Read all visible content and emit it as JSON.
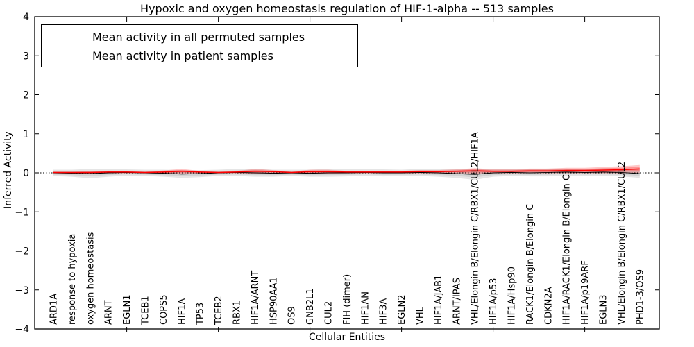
{
  "figure": {
    "title": "Hypoxic and oxygen homeostasis regulation of HIF-1-alpha -- 513 samples",
    "xlabel": "Cellular Entities",
    "ylabel": "Inferred Activity"
  },
  "legend": {
    "items": [
      {
        "label": "Mean activity in all permuted samples",
        "color": "#000000"
      },
      {
        "label": "Mean activity in patient samples",
        "color": "#ff0000"
      }
    ]
  },
  "chart_data": {
    "type": "line",
    "title": "Hypoxic and oxygen homeostasis regulation of HIF-1-alpha -- 513 samples",
    "xlabel": "Cellular Entities",
    "ylabel": "Inferred Activity",
    "ylim": [
      -4,
      4
    ],
    "yticks": [
      -4,
      -3,
      -2,
      -1,
      0,
      1,
      2,
      3,
      4
    ],
    "grid": false,
    "legend_position": "upper left",
    "zero_reference_line": "dotted",
    "x_major_tick_indices": [
      4,
      9,
      14,
      19,
      24,
      29
    ],
    "categories": [
      "ARD1A",
      "response to hypoxia",
      "oxygen homeostasis",
      "ARNT",
      "EGLN1",
      "TCEB1",
      "COPS5",
      "HIF1A",
      "TP53",
      "TCEB2",
      "RBX1",
      "HIF1A/ARNT",
      "HSP90AA1",
      "OS9",
      "GNB2L1",
      "CUL2",
      "FIH (dimer)",
      "HIF1AN",
      "HIF3A",
      "EGLN2",
      "VHL",
      "HIF1A/JAB1",
      "ARNT/IPAS",
      "VHL/Elongin B/Elongin C/RBX1/CUL2/HIF1A",
      "HIF1A/p53",
      "HIF1A/Hsp90",
      "RACK1/Elongin B/Elongin C",
      "CDKN2A",
      "HIF1A/RACK1/Elongin B/Elongin C",
      "HIF1A/p19ARF",
      "EGLN3",
      "VHL/Elongin B/Elongin C/RBX1/CUL2",
      "PHD1-3/OS9"
    ],
    "series": [
      {
        "name": "Mean activity in all permuted samples",
        "color": "#000000",
        "values": [
          0.0,
          -0.01,
          -0.02,
          0.0,
          0.01,
          0.0,
          -0.01,
          -0.03,
          -0.02,
          0.0,
          0.01,
          0.0,
          -0.01,
          0.0,
          -0.01,
          0.0,
          0.0,
          0.01,
          0.0,
          0.0,
          0.01,
          0.0,
          -0.02,
          -0.04,
          0.0,
          0.01,
          0.0,
          0.01,
          0.02,
          0.01,
          0.02,
          0.01,
          -0.02
        ],
        "band_halfwidth": [
          0.08,
          0.09,
          0.12,
          0.1,
          0.08,
          0.08,
          0.09,
          0.1,
          0.09,
          0.08,
          0.09,
          0.1,
          0.09,
          0.08,
          0.09,
          0.1,
          0.09,
          0.08,
          0.09,
          0.08,
          0.09,
          0.1,
          0.11,
          0.14,
          0.1,
          0.09,
          0.09,
          0.1,
          0.09,
          0.09,
          0.1,
          0.1,
          0.11
        ]
      },
      {
        "name": "Mean activity in patient samples",
        "color": "#ff0000",
        "values": [
          0.01,
          0.01,
          0.01,
          0.02,
          0.02,
          0.01,
          0.02,
          0.04,
          0.02,
          0.01,
          0.02,
          0.04,
          0.03,
          0.01,
          0.03,
          0.03,
          0.02,
          0.02,
          0.02,
          0.02,
          0.03,
          0.03,
          0.04,
          0.05,
          0.04,
          0.04,
          0.05,
          0.05,
          0.06,
          0.06,
          0.07,
          0.08,
          0.1
        ],
        "band_halfwidth": [
          0.02,
          0.02,
          0.03,
          0.03,
          0.03,
          0.02,
          0.04,
          0.06,
          0.03,
          0.02,
          0.03,
          0.06,
          0.04,
          0.02,
          0.05,
          0.05,
          0.03,
          0.03,
          0.03,
          0.03,
          0.04,
          0.04,
          0.05,
          0.07,
          0.05,
          0.05,
          0.06,
          0.06,
          0.07,
          0.07,
          0.08,
          0.09,
          0.1
        ]
      }
    ]
  }
}
